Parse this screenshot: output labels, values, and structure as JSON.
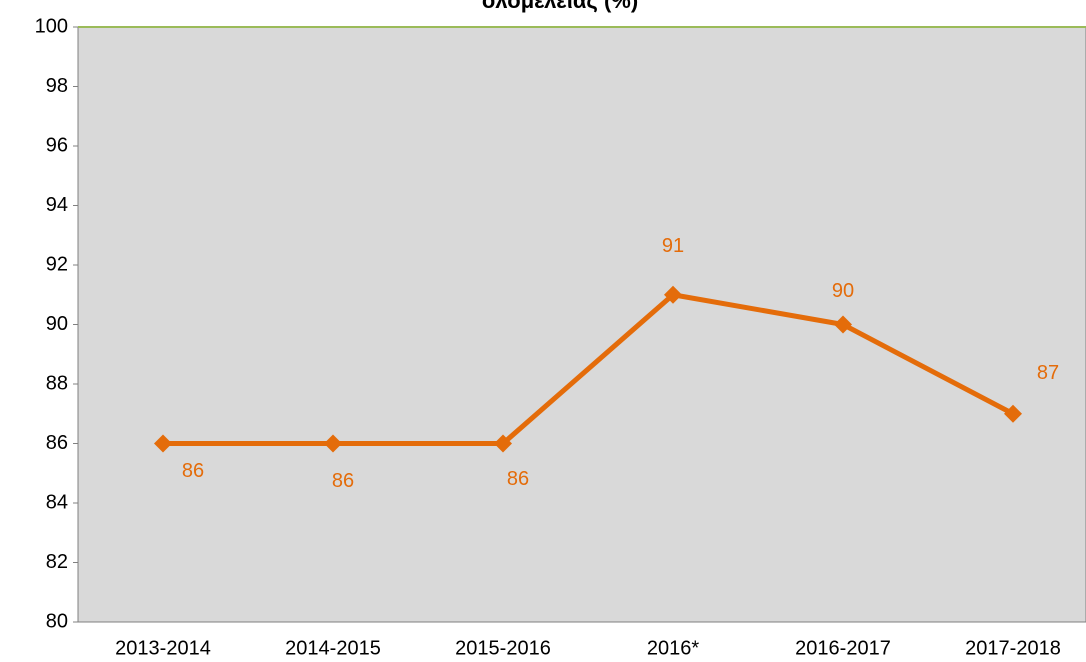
{
  "chart_data": {
    "type": "line",
    "title": "ολομέλειας (%)",
    "categories": [
      "2013-2014",
      "2014-2015",
      "2015-2016",
      "2016*",
      "2016-2017",
      "2017-2018"
    ],
    "series": [
      {
        "name": null,
        "color": "#e46c0a",
        "values": [
          86,
          86,
          86,
          91,
          90,
          87
        ]
      }
    ],
    "ylim": [
      80,
      100
    ],
    "yticks": [
      80,
      82,
      84,
      86,
      88,
      90,
      92,
      94,
      96,
      98,
      100
    ],
    "plot_background": "#d9d9d9",
    "grid": false,
    "data_labels": true
  }
}
